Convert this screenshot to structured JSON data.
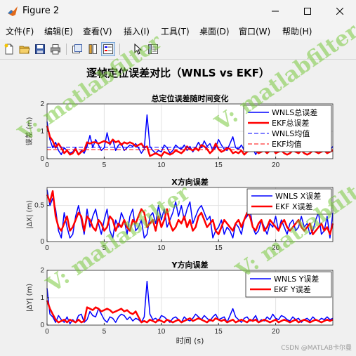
{
  "window": {
    "title": "Figure 2"
  },
  "menu": [
    "文件(F)",
    "编辑(E)",
    "查看(V)",
    "插入(I)",
    "工具(T)",
    "桌面(D)",
    "窗口(W)",
    "帮助(H)"
  ],
  "toolbar_icons": [
    "new-figure-icon",
    "open-file-icon",
    "save-icon",
    "print-icon",
    "link-plot-icon",
    "insert-colorbar-icon",
    "insert-legend-icon",
    "edit-plot-icon",
    "property-inspector-icon"
  ],
  "figure_title": "逐帧定位误差对比（WNLS vs EKF）",
  "watermark": "V: matlabfilter",
  "footer": "CSDN @MATLAB卡尔曼",
  "colors": {
    "wnls": "#0000ff",
    "ekf": "#ff0000"
  },
  "chart_data": [
    {
      "type": "line",
      "title": "总定位误差随时间变化",
      "ylabel": "误差 (m)",
      "xlabel": "",
      "xlim": [
        0,
        25
      ],
      "ylim": [
        0,
        2
      ],
      "xticks": [
        0,
        5,
        10,
        15,
        20
      ],
      "yticks": [
        0,
        1,
        2
      ],
      "grid": true,
      "legend_position": "top-right",
      "series": [
        {
          "name": "WNLS总误差",
          "style": "solid",
          "width": 1.5,
          "color": "#0000ff",
          "values": [
            1.35,
            0.7,
            0.4,
            0.6,
            0.3,
            0.15,
            0.4,
            0.3,
            0.2,
            0.25,
            0.4,
            0.15,
            0.3,
            0.2,
            0.45,
            0.85,
            0.4,
            0.7,
            0.5,
            0.3,
            0.4,
            0.95,
            0.5,
            0.7,
            0.3,
            0.5,
            0.55,
            0.3,
            0.4,
            0.5,
            0.45,
            0.55,
            0.4,
            0.2,
            0.35,
            1.6,
            0.45,
            0.3,
            0.2,
            0.3,
            0.25,
            0.5,
            0.4,
            0.2,
            0.3,
            0.5,
            0.4,
            0.35,
            0.5,
            0.3,
            0.45,
            0.25,
            0.4,
            0.6,
            0.4,
            0.65,
            0.45,
            0.55,
            0.3,
            0.4,
            0.7,
            0.5,
            0.35,
            0.3,
            0.55,
            0.8,
            0.4,
            0.35,
            0.5,
            0.3,
            0.45,
            0.55,
            0.4,
            0.15,
            0.35,
            0.45,
            0.3,
            0.3,
            0.45,
            0.6,
            0.4,
            0.35,
            0.3,
            0.45,
            0.35,
            0.4,
            0.3,
            0.55,
            0.35,
            0.3,
            0.45,
            0.3,
            0.3,
            0.4,
            0.25,
            0.3,
            0.5,
            0.4,
            0.35,
            0.3,
            0.45
          ]
        },
        {
          "name": "EKF总误差",
          "style": "solid",
          "width": 2.5,
          "color": "#ff0000",
          "values": [
            1.2,
            0.8,
            0.65,
            0.4,
            0.55,
            0.4,
            0.2,
            0.3,
            0.15,
            0.2,
            0.35,
            0.15,
            0.25,
            0.3,
            0.6,
            0.55,
            0.6,
            0.6,
            0.55,
            0.6,
            0.65,
            0.6,
            0.55,
            0.7,
            0.6,
            0.65,
            0.5,
            0.6,
            0.55,
            0.6,
            0.55,
            0.45,
            0.5,
            0.55,
            0.4,
            0.45,
            0.1,
            0.15,
            0.2,
            0.15,
            0.1,
            0.25,
            0.2,
            0.15,
            0.2,
            0.3,
            0.25,
            0.2,
            0.3,
            0.45,
            0.35,
            0.3,
            0.4,
            0.3,
            0.5,
            0.45,
            0.35,
            0.2,
            0.3,
            0.55,
            0.35,
            0.25,
            0.3,
            0.4,
            0.35,
            0.2,
            0.25,
            0.2,
            0.3,
            0.15,
            0.25,
            0.3,
            0.35,
            0.3,
            0.2,
            0.25,
            0.3,
            0.2,
            0.3,
            0.35,
            0.2,
            0.25,
            0.3,
            0.2,
            0.15,
            0.2,
            0.3,
            0.25,
            0.2,
            0.3,
            0.2,
            0.15,
            0.2,
            0.3,
            0.25,
            0.2,
            0.25,
            0.3,
            0.2,
            0.25,
            0.3
          ]
        },
        {
          "name": "WNLS均值",
          "style": "dashed",
          "width": 1,
          "color": "#0000ff",
          "values": [
            0.42
          ]
        },
        {
          "name": "EKF均值",
          "style": "dashed",
          "width": 1,
          "color": "#ff0000",
          "values": [
            0.33
          ]
        }
      ]
    },
    {
      "type": "line",
      "title": "X方向误差",
      "ylabel": "|ΔX| (m)",
      "xlabel": "",
      "xlim": [
        0,
        25
      ],
      "ylim": [
        0,
        0.75
      ],
      "xticks": [
        0,
        5,
        10,
        15,
        20
      ],
      "yticks": [
        0,
        0.5
      ],
      "grid": true,
      "legend_position": "top-right",
      "series": [
        {
          "name": "WNLS X误差",
          "style": "solid",
          "width": 1.5,
          "color": "#0000ff",
          "values": [
            0.72,
            0.5,
            0.6,
            0.45,
            0.15,
            0.05,
            0.4,
            0.2,
            0.05,
            0.1,
            0.35,
            0.5,
            0.3,
            0.1,
            0.45,
            0.2,
            0.35,
            0.45,
            0.25,
            0.1,
            0.3,
            0.45,
            0.15,
            0.05,
            0.3,
            0.2,
            0.4,
            0.3,
            0.1,
            0.35,
            0.45,
            0.15,
            0.2,
            0.3,
            0.05,
            0.1,
            0.35,
            0.4,
            0.25,
            0.5,
            0.3,
            0.45,
            0.2,
            0.3,
            0.4,
            0.55,
            0.35,
            0.5,
            0.3,
            0.45,
            0.55,
            0.25,
            0.35,
            0.45,
            0.5,
            0.4,
            0.3,
            0.35,
            0.05,
            0.15,
            0.2,
            0.3,
            0.1,
            0.2,
            0.15,
            0.05,
            0.25,
            0.2,
            0.1,
            0.3,
            0.35,
            0.45,
            0.2,
            0.1,
            0.15,
            0.3,
            0.2,
            0.1,
            0.25,
            0.2,
            0.35,
            0.15,
            0.3,
            0.2,
            0.1,
            0.25,
            0.3,
            0.15,
            0.2,
            0.35,
            0.2,
            0.25,
            0.1,
            0.15,
            0.3,
            0.4,
            0.1,
            0.15,
            0.35,
            0.05,
            0.4
          ]
        },
        {
          "name": "EKF X误差",
          "style": "solid",
          "width": 2.5,
          "color": "#ff0000",
          "values": [
            0.65,
            0.55,
            0.7,
            0.35,
            0.2,
            0.15,
            0.25,
            0.35,
            0.15,
            0.2,
            0.3,
            0.4,
            0.35,
            0.15,
            0.35,
            0.3,
            0.2,
            0.15,
            0.3,
            0.25,
            0.15,
            0.2,
            0.35,
            0.3,
            0.15,
            0.25,
            0.2,
            0.3,
            0.2,
            0.15,
            0.3,
            0.25,
            0.35,
            0.45,
            0.4,
            0.2,
            0.25,
            0.3,
            0.15,
            0.35,
            0.2,
            0.3,
            0.45,
            0.25,
            0.15,
            0.2,
            0.3,
            0.25,
            0.35,
            0.2,
            0.3,
            0.15,
            0.2,
            0.35,
            0.4,
            0.3,
            0.2,
            0.25,
            0.3,
            0.15,
            0.1,
            0.2,
            0.3,
            0.25,
            0.2,
            0.15,
            0.25,
            0.3,
            0.2,
            0.3,
            0.4,
            0.35,
            0.2,
            0.15,
            0.25,
            0.3,
            0.15,
            0.2,
            0.3,
            0.25,
            0.2,
            0.15,
            0.25,
            0.3,
            0.2,
            0.15,
            0.2,
            0.25,
            0.3,
            0.2,
            0.15,
            0.2,
            0.25,
            0.1,
            0.15,
            0.2,
            0.25,
            0.15,
            0.2,
            0.1,
            0.25
          ]
        }
      ]
    },
    {
      "type": "line",
      "title": "Y方向误差",
      "ylabel": "|ΔY| (m)",
      "xlabel": "时间 (s)",
      "xlim": [
        0,
        25
      ],
      "ylim": [
        0,
        2
      ],
      "xticks": [
        0,
        5,
        10,
        15,
        20
      ],
      "yticks": [
        0,
        1,
        2
      ],
      "grid": true,
      "legend_position": "top-right",
      "series": [
        {
          "name": "WNLS Y误差",
          "style": "solid",
          "width": 1.5,
          "color": "#0000ff",
          "values": [
            1.35,
            0.4,
            0.3,
            0.1,
            0.35,
            0.2,
            0.1,
            0.3,
            0.05,
            0.2,
            0.1,
            0.35,
            0.4,
            0.1,
            0.2,
            0.5,
            0.35,
            0.3,
            0.6,
            0.4,
            0.2,
            0.1,
            0.3,
            0.25,
            0.1,
            0.3,
            0.4,
            0.35,
            0.2,
            0.3,
            0.15,
            0.25,
            0.2,
            0.1,
            0.3,
            1.6,
            0.4,
            0.2,
            0.25,
            0.15,
            0.35,
            0.3,
            0.2,
            0.1,
            0.25,
            0.3,
            0.2,
            0.1,
            0.3,
            0.2,
            0.15,
            0.25,
            0.4,
            0.3,
            0.2,
            0.35,
            0.25,
            0.15,
            0.3,
            0.4,
            0.2,
            0.25,
            0.3,
            0.1,
            0.35,
            0.6,
            0.3,
            0.2,
            0.1,
            0.25,
            0.3,
            0.15,
            0.2,
            0.35,
            0.1,
            0.2,
            0.15,
            0.3,
            0.2,
            0.4,
            0.25,
            0.2,
            0.35,
            0.3,
            0.2,
            0.15,
            0.3,
            0.2,
            0.25,
            0.1,
            0.2,
            0.25,
            0.15,
            0.3,
            0.2,
            0.15,
            0.25,
            0.2,
            0.3,
            0.2,
            0.25
          ]
        },
        {
          "name": "EKF Y误差",
          "style": "solid",
          "width": 2.5,
          "color": "#ff0000",
          "values": [
            0.9,
            0.6,
            0.4,
            0.2,
            0.1,
            0.15,
            0.2,
            0.1,
            0.2,
            0.15,
            0.1,
            0.2,
            0.1,
            0.15,
            0.65,
            0.6,
            0.55,
            0.65,
            0.6,
            0.5,
            0.55,
            0.6,
            0.55,
            0.45,
            0.5,
            0.55,
            0.6,
            0.5,
            0.55,
            0.45,
            0.4,
            0.5,
            0.3,
            0.1,
            0.15,
            0.1,
            0.2,
            0.15,
            0.1,
            0.2,
            0.15,
            0.1,
            0.2,
            0.15,
            0.1,
            0.15,
            0.2,
            0.1,
            0.15,
            0.2,
            0.25,
            0.15,
            0.2,
            0.25,
            0.2,
            0.15,
            0.1,
            0.2,
            0.15,
            0.25,
            0.2,
            0.15,
            0.2,
            0.1,
            0.15,
            0.2,
            0.1,
            0.15,
            0.2,
            0.15,
            0.1,
            0.2,
            0.15,
            0.2,
            0.1,
            0.15,
            0.2,
            0.15,
            0.1,
            0.15,
            0.2,
            0.1,
            0.15,
            0.2,
            0.15,
            0.1,
            0.15,
            0.2,
            0.1,
            0.15,
            0.2,
            0.15,
            0.1,
            0.15,
            0.2,
            0.15,
            0.1,
            0.15,
            0.2,
            0.15,
            0.2
          ]
        }
      ]
    }
  ]
}
